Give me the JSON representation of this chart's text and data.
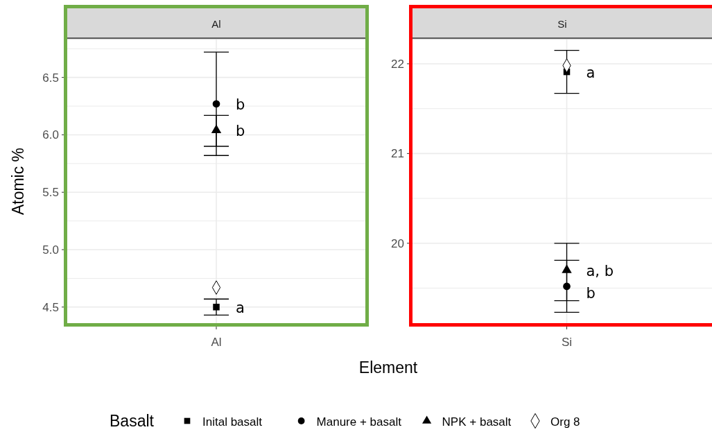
{
  "chart_data": [
    {
      "type": "scatter",
      "title": "Al",
      "xlabel": "Element",
      "ylabel": "Atomic %",
      "legend_title": "Basalt",
      "legend": "bottom",
      "grid": true,
      "categories": [
        "Al"
      ],
      "ylim": [
        4.36,
        6.83
      ],
      "yticks": [
        4.5,
        {
          "value": 4.75,
          "label": null
        },
        {
          "value": 5,
          "label": "5.0"
        },
        {
          "value": 5.25,
          "label": null
        },
        5.5,
        {
          "value": 5.75,
          "label": null
        },
        {
          "value": 6,
          "label": "6.0"
        },
        {
          "value": 6.25,
          "label": null
        },
        6.5,
        {
          "value": 6.75,
          "label": null
        }
      ],
      "series": [
        {
          "name": "Inital basalt",
          "color": "#000000",
          "marker": "square",
          "values": [
            4.5
          ],
          "errors": [
            0.07
          ]
        },
        {
          "name": "Manure + basalt",
          "color": "#000000",
          "marker": "circle",
          "values": [
            6.27
          ],
          "errors": [
            0.45
          ]
        },
        {
          "name": "NPK + basalt",
          "color": "#000000",
          "marker": "triangle",
          "values": [
            6.04
          ],
          "errors": [
            [
              5.9,
              6.17
            ]
          ]
        },
        {
          "name": "Org 8",
          "color": "#000000",
          "marker": "diamond",
          "values": [
            4.67
          ]
        }
      ],
      "annotations": [
        {
          "text": "b",
          "x": "Al",
          "y": 6.27
        },
        {
          "text": "b",
          "x": "Al",
          "y": 6.04
        },
        {
          "text": "a",
          "x": "Al",
          "y": 4.5
        }
      ]
    },
    {
      "type": "scatter",
      "title": "Si",
      "grid": true,
      "categories": [
        "Si"
      ],
      "ylim": [
        19.11,
        22.27
      ],
      "yticks": [
        {
          "value": 19.5,
          "label": null
        },
        20,
        {
          "value": 20.5,
          "label": null
        },
        21,
        {
          "value": 21.5,
          "label": null
        },
        22
      ],
      "series": [
        {
          "color": "#000000",
          "marker": "square",
          "values": [
            21.91
          ],
          "errors": [
            0.24
          ]
        },
        {
          "color": "#000000",
          "marker": "circle",
          "values": [
            19.52
          ],
          "errors": [
            [
              19.23,
              19.81
            ]
          ]
        },
        {
          "color": "#000000",
          "marker": "triangle",
          "values": [
            19.7
          ],
          "errors": [
            [
              19.36,
              20.0
            ]
          ]
        },
        {
          "color": "#000000",
          "marker": "diamond",
          "values": [
            21.98
          ]
        }
      ],
      "annotations": [
        {
          "text": "a",
          "x": "Si",
          "y": 21.91
        },
        {
          "text": "a, b",
          "x": "Si",
          "y": 19.7
        },
        {
          "text": "b",
          "x": "Si",
          "y": 19.45
        }
      ]
    }
  ]
}
